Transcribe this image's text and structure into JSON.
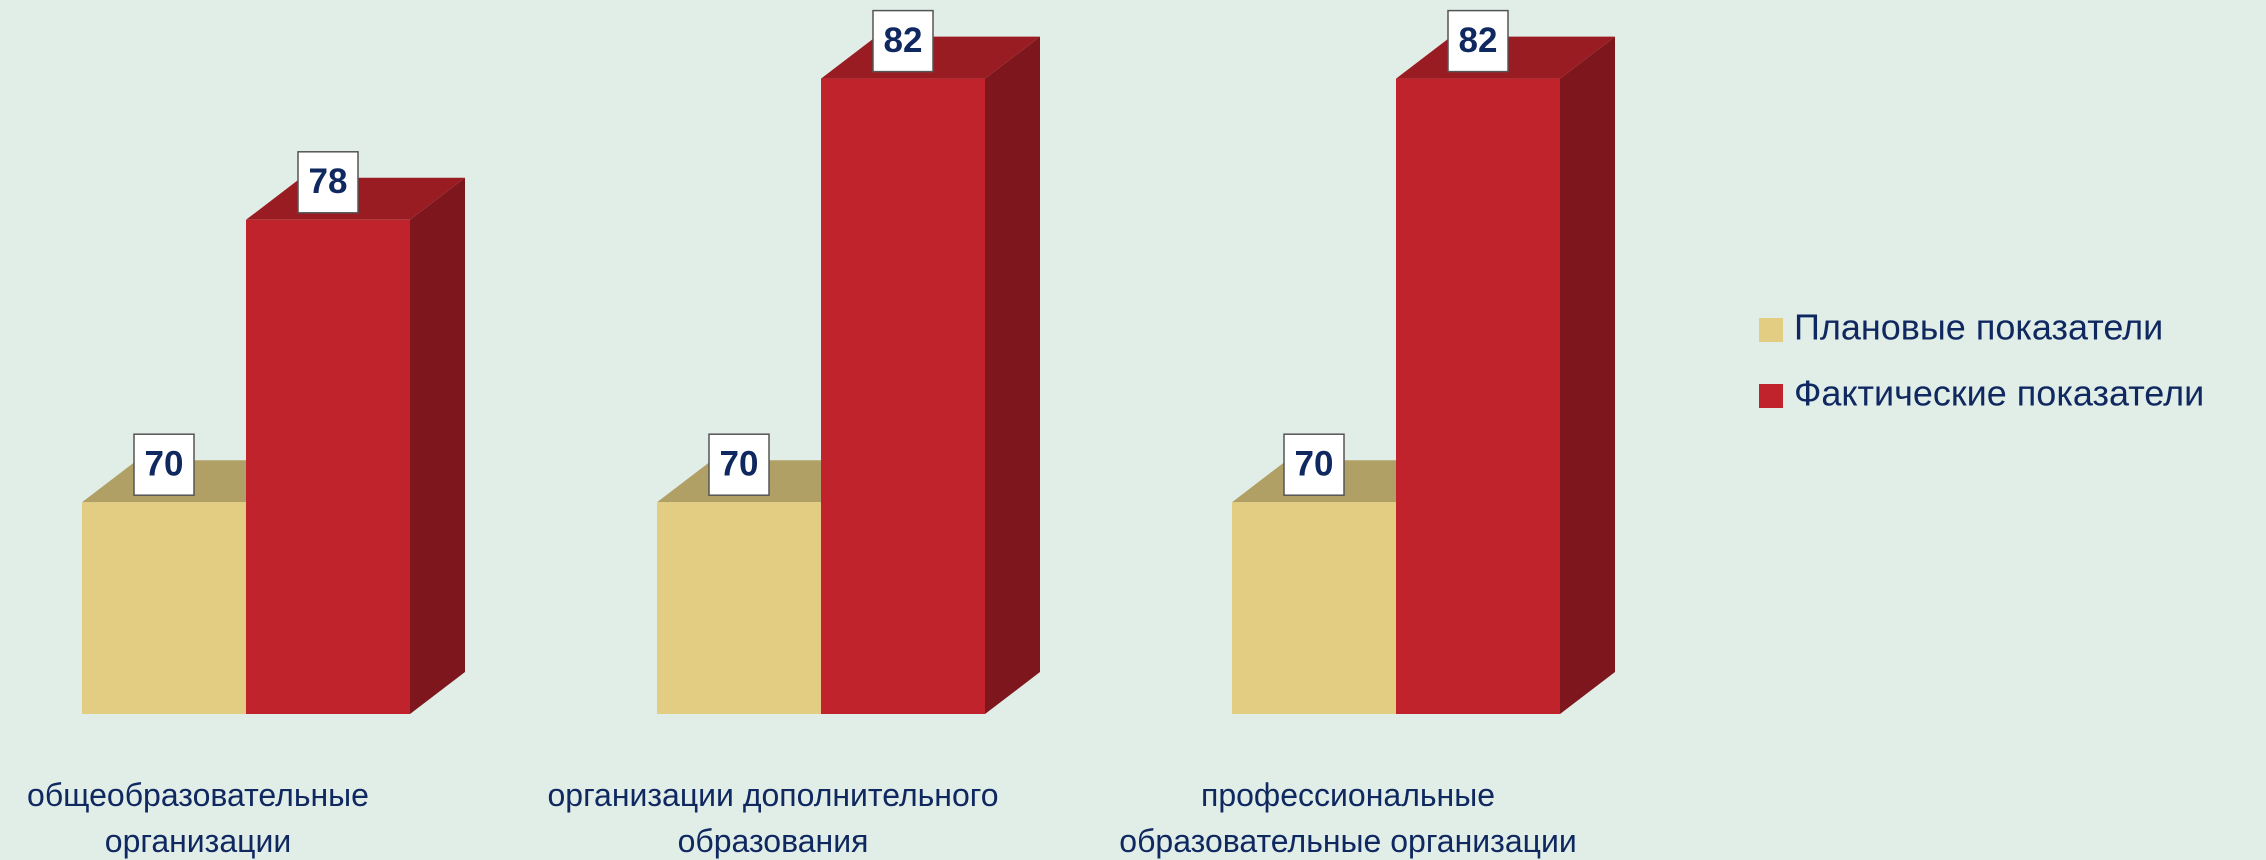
{
  "chart_data": {
    "type": "bar3d",
    "categories": [
      "общеобразовательные организации",
      "организации дополнительного образования",
      "профессиональные образовательные организации"
    ],
    "series": [
      {
        "name": "Плановые показатели",
        "color": "#e3cd82",
        "values": [
          70,
          70,
          70
        ]
      },
      {
        "name": "Фактические показатели",
        "color": "#c0232c",
        "values": [
          78,
          82,
          82
        ]
      }
    ],
    "ylim": [
      64,
      84
    ]
  }
}
